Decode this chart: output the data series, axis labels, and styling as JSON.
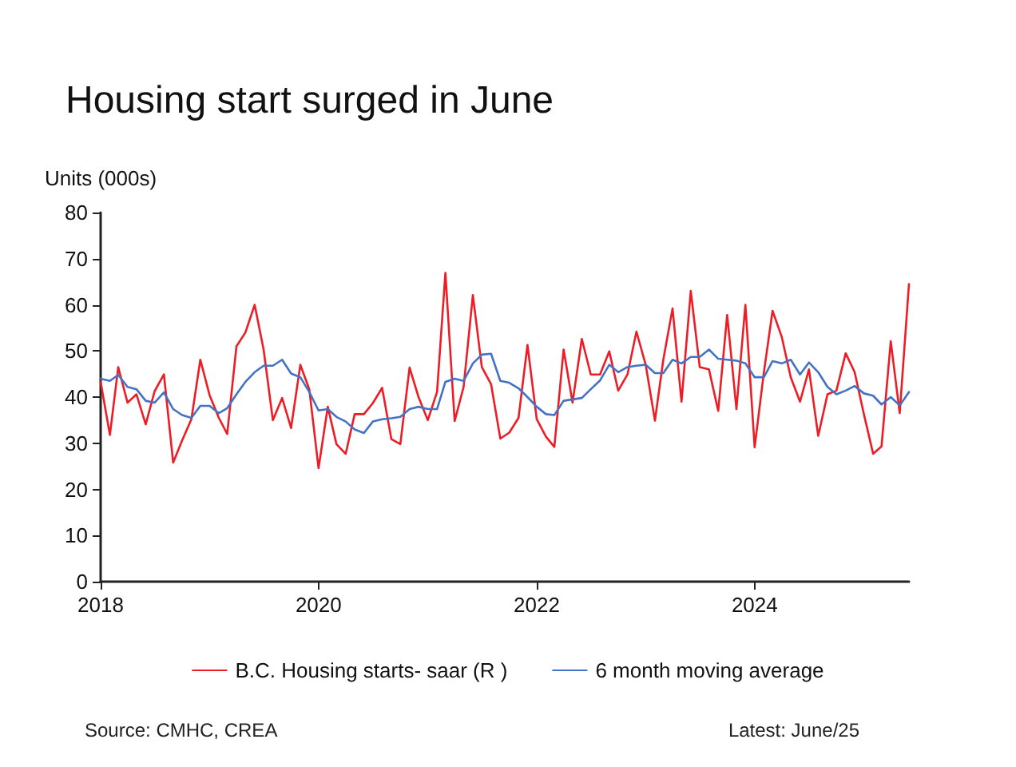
{
  "chart_data": {
    "type": "line",
    "title": "Housing start surged in June",
    "ylabel": "Units (000s)",
    "annotations": [
      "Source: CMHC, CREA",
      "Latest: June/25"
    ],
    "x": [
      "2018-01",
      "2018-02",
      "2018-03",
      "2018-04",
      "2018-05",
      "2018-06",
      "2018-07",
      "2018-08",
      "2018-09",
      "2018-10",
      "2018-11",
      "2018-12",
      "2019-01",
      "2019-02",
      "2019-03",
      "2019-04",
      "2019-05",
      "2019-06",
      "2019-07",
      "2019-08",
      "2019-09",
      "2019-10",
      "2019-11",
      "2019-12",
      "2020-01",
      "2020-02",
      "2020-03",
      "2020-04",
      "2020-05",
      "2020-06",
      "2020-07",
      "2020-08",
      "2020-09",
      "2020-10",
      "2020-11",
      "2020-12",
      "2021-01",
      "2021-02",
      "2021-03",
      "2021-04",
      "2021-05",
      "2021-06",
      "2021-07",
      "2021-08",
      "2021-09",
      "2021-10",
      "2021-11",
      "2021-12",
      "2022-01",
      "2022-02",
      "2022-03",
      "2022-04",
      "2022-05",
      "2022-06",
      "2022-07",
      "2022-08",
      "2022-09",
      "2022-10",
      "2022-11",
      "2022-12",
      "2023-01",
      "2023-02",
      "2023-03",
      "2023-04",
      "2023-05",
      "2023-06",
      "2023-07",
      "2023-08",
      "2023-09",
      "2023-10",
      "2023-11",
      "2023-12",
      "2024-01",
      "2024-02",
      "2024-03",
      "2024-04",
      "2024-05",
      "2024-06",
      "2024-07",
      "2024-08",
      "2024-09",
      "2024-10",
      "2024-11",
      "2024-12",
      "2025-01",
      "2025-02",
      "2025-03",
      "2025-04",
      "2025-05",
      "2025-06"
    ],
    "series": [
      {
        "name": "B.C. Housing starts- saar (R )",
        "color": "#ee1c25",
        "values": [
          43.3,
          31.8,
          46.5,
          38.8,
          40.6,
          34.1,
          41.3,
          44.9,
          25.8,
          30.6,
          35.2,
          48.1,
          40.4,
          35.5,
          32.0,
          51.0,
          54.0,
          60.0,
          50.3,
          35.0,
          39.8,
          33.3,
          47.0,
          41.7,
          24.6,
          37.9,
          29.8,
          27.7,
          36.3,
          36.3,
          38.7,
          42.0,
          30.9,
          29.8,
          46.4,
          40.0,
          35.0,
          41.1,
          66.9,
          34.8,
          42.2,
          62.1,
          46.5,
          42.8,
          31.0,
          32.3,
          35.5,
          51.3,
          35.2,
          31.4,
          29.2,
          50.3,
          38.8,
          52.6,
          44.9,
          44.9,
          49.9,
          41.4,
          44.9,
          54.2,
          47.0,
          34.9,
          48.1,
          59.2,
          39.0,
          63.0,
          46.5,
          46.0,
          37.0,
          57.8,
          37.4,
          60.0,
          29.1,
          45.4,
          58.7,
          53.0,
          44.3,
          39.0,
          46.0,
          31.6,
          40.6,
          41.4,
          49.5,
          45.4,
          36.3,
          27.7,
          29.3,
          52.1,
          36.5,
          64.5
        ]
      },
      {
        "name": "6 month moving average",
        "color": "#4472c4",
        "values": [
          44.0,
          43.5,
          44.8,
          42.2,
          41.7,
          39.2,
          38.8,
          41.0,
          37.4,
          36.1,
          35.5,
          38.1,
          38.1,
          36.5,
          37.6,
          40.6,
          43.3,
          45.4,
          46.8,
          46.8,
          48.1,
          45.1,
          44.3,
          41.1,
          37.1,
          37.4,
          35.7,
          34.7,
          33.0,
          32.2,
          34.7,
          35.2,
          35.4,
          35.7,
          37.4,
          37.9,
          37.4,
          37.4,
          43.3,
          44.0,
          43.5,
          47.3,
          49.2,
          49.4,
          43.5,
          43.1,
          41.9,
          40.0,
          37.9,
          36.3,
          36.1,
          39.2,
          39.5,
          39.8,
          41.7,
          43.6,
          47.0,
          45.4,
          46.5,
          46.8,
          47.0,
          45.2,
          45.2,
          48.1,
          47.3,
          48.7,
          48.7,
          50.3,
          48.3,
          48.1,
          47.9,
          47.3,
          44.3,
          44.3,
          47.8,
          47.3,
          48.1,
          44.9,
          47.5,
          45.4,
          42.2,
          40.6,
          41.4,
          42.4,
          40.8,
          40.3,
          38.4,
          40.0,
          38.2,
          41.1
        ]
      }
    ],
    "xlim": [
      "2018-01",
      "2025-06"
    ],
    "xticks": [
      "2018",
      "2020",
      "2022",
      "2024"
    ],
    "ylim": [
      0,
      80
    ],
    "yticks": [
      0,
      10,
      20,
      30,
      40,
      50,
      60,
      70,
      80
    ],
    "grid": false,
    "legend": "bottom",
    "marker": "none",
    "line_style": "solid"
  }
}
